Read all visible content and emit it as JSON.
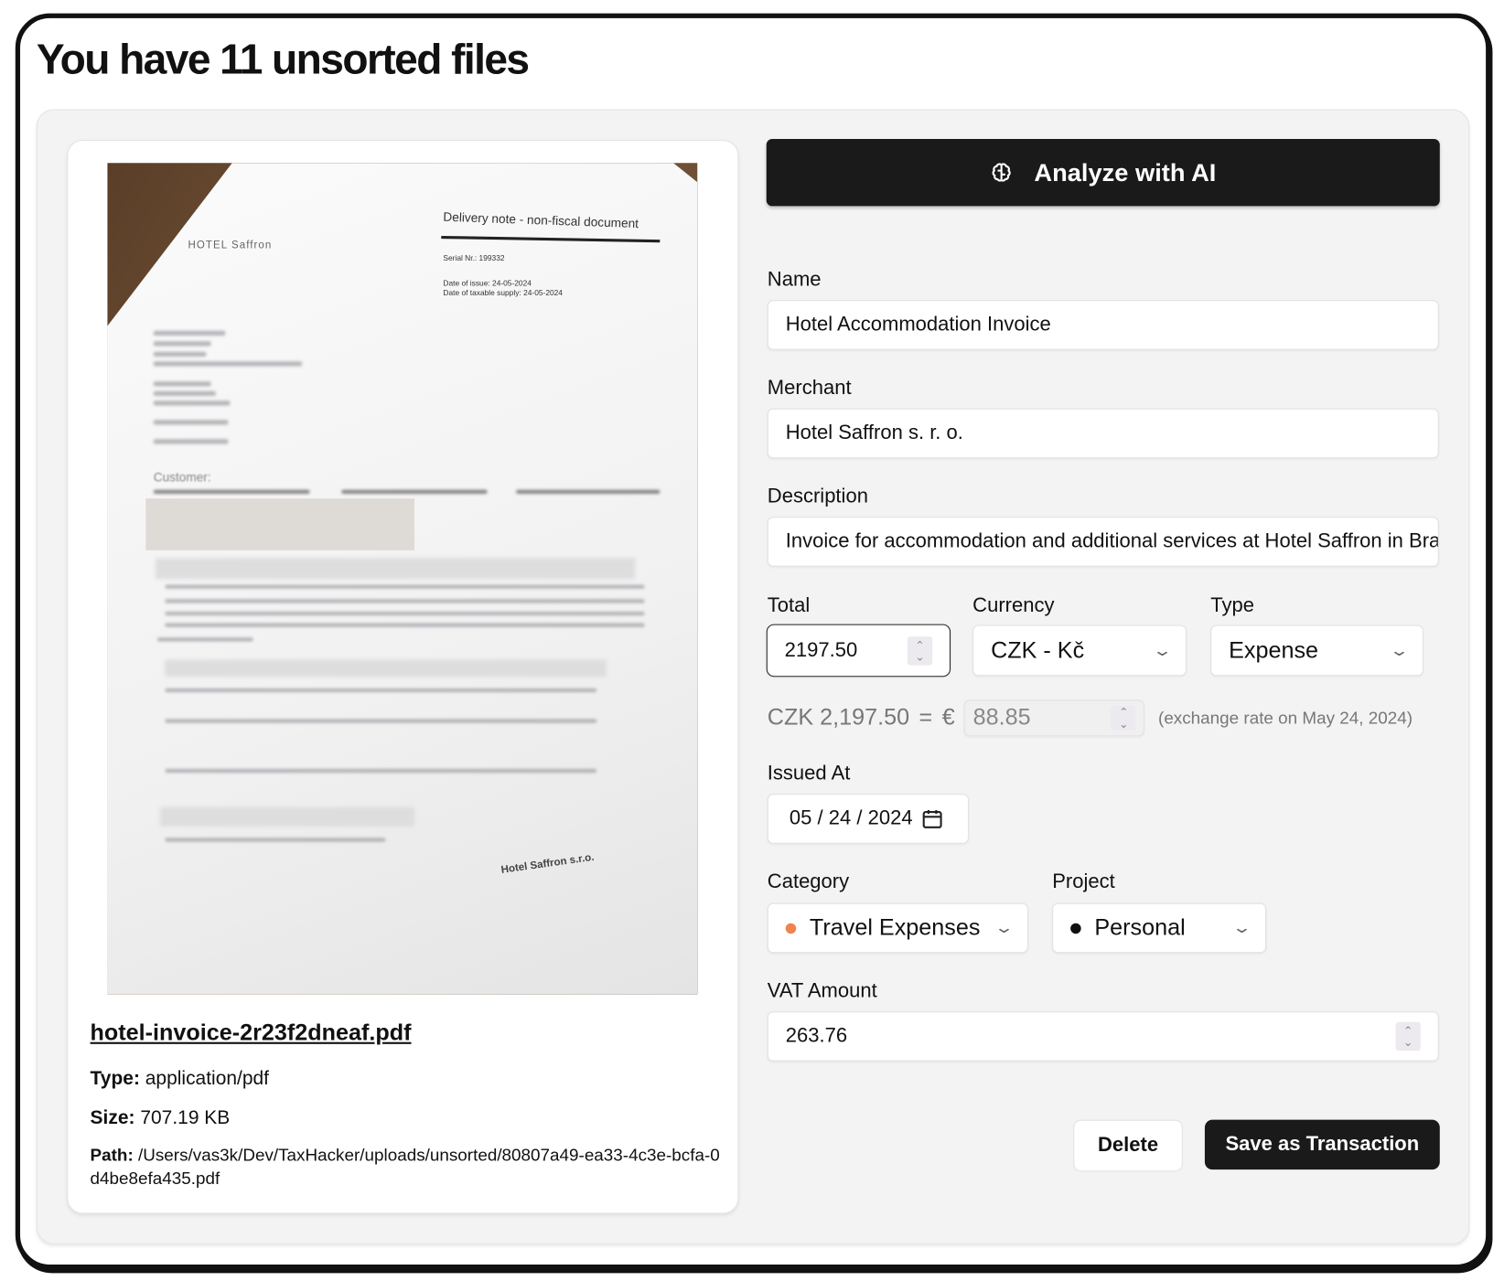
{
  "page_title": "You have 11 unsorted files",
  "file": {
    "name": "hotel-invoice-2r23f2dneaf.pdf",
    "type_label": "Type:",
    "type": "application/pdf",
    "size_label": "Size:",
    "size": "707.19 KB",
    "path_label": "Path:",
    "path": "/Users/vas3k/Dev/TaxHacker/uploads/unsorted/80807a49-ea33-4c3e-bcfa-0d4be8efa435.pdf",
    "preview": {
      "hotel_logo": "HOTEL Saffron",
      "heading": "Delivery note - non-fiscal document",
      "serial": "Serial Nr.: 199332",
      "date_issue": "Date of issue: 24-05-2024",
      "date_supply": "Date of taxable supply: 24-05-2024",
      "customer": "Customer:",
      "stamp": "Hotel Saffron s.r.o."
    }
  },
  "analyze": {
    "label": "Analyze with AI",
    "icon": "brain-icon"
  },
  "form": {
    "name": {
      "label": "Name",
      "value": "Hotel Accommodation Invoice"
    },
    "merchant": {
      "label": "Merchant",
      "value": "Hotel Saffron s. r. o."
    },
    "description": {
      "label": "Description",
      "value": "Invoice for accommodation and additional services at Hotel Saffron in Bratislava"
    },
    "total": {
      "label": "Total",
      "value": "2197.50"
    },
    "currency": {
      "label": "Currency",
      "value": "CZK - Kč"
    },
    "type": {
      "label": "Type",
      "value": "Expense"
    },
    "conversion": {
      "from": "CZK 2,197.50",
      "equals": "=",
      "symbol": "€",
      "value": "88.85",
      "note": "(exchange rate on May 24, 2024)"
    },
    "issued_at": {
      "label": "Issued At",
      "value": "05 / 24 / 2024"
    },
    "category": {
      "label": "Category",
      "value": "Travel Expenses",
      "color": "#f0834f"
    },
    "project": {
      "label": "Project",
      "value": "Personal",
      "color": "#111111"
    },
    "vat": {
      "label": "VAT Amount",
      "value": "263.76"
    }
  },
  "actions": {
    "delete": "Delete",
    "save": "Save as Transaction"
  }
}
